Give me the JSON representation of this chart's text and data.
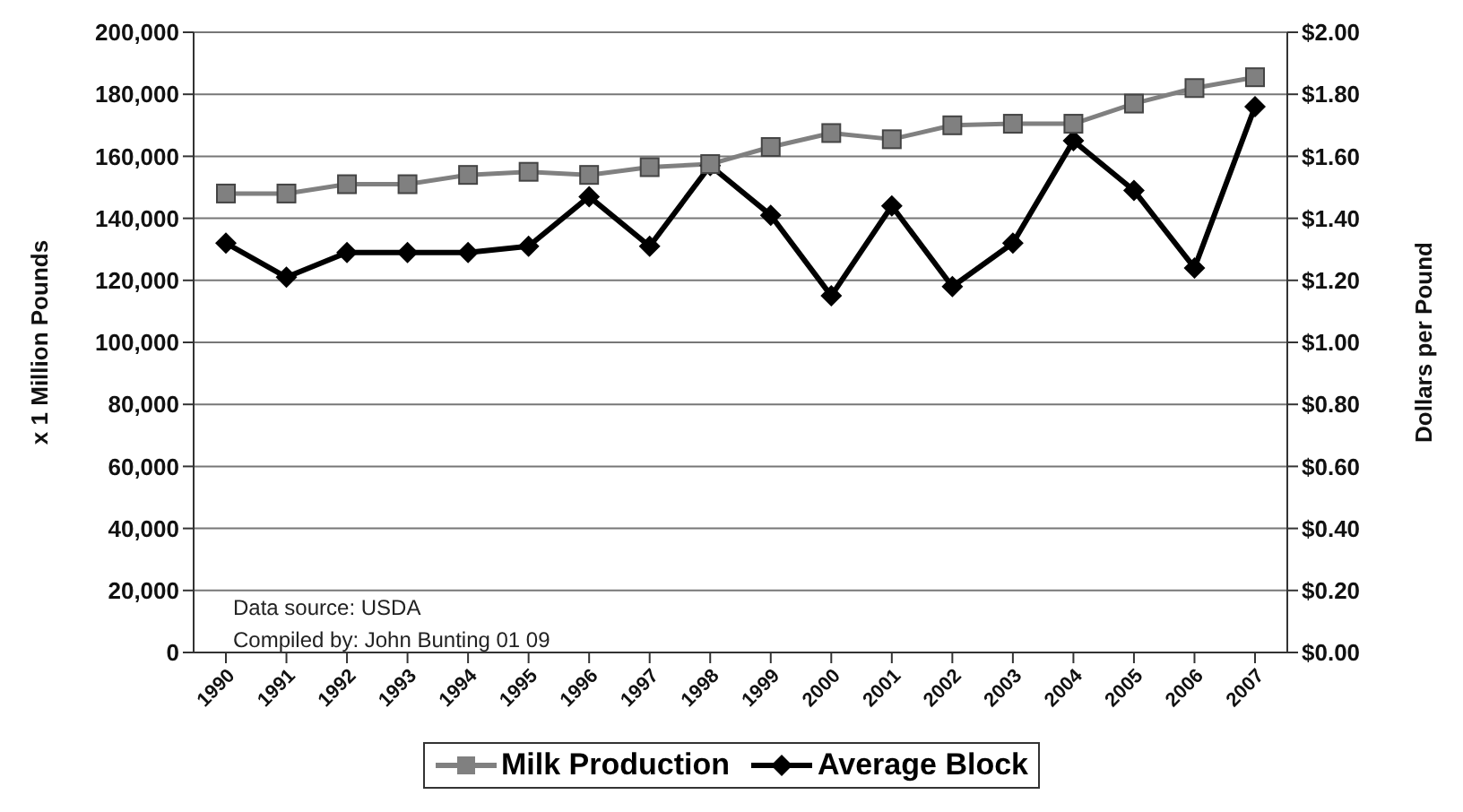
{
  "chart_data": {
    "type": "line",
    "categories": [
      "1990",
      "1991",
      "1992",
      "1993",
      "1994",
      "1995",
      "1996",
      "1997",
      "1998",
      "1999",
      "2000",
      "2001",
      "2002",
      "2003",
      "2004",
      "2005",
      "2006",
      "2007"
    ],
    "ylabel": "x 1 Million Pounds",
    "y2label": "Dollars per Pound",
    "series": [
      {
        "name": "Milk Production",
        "color": "#808080",
        "marker": "square",
        "values": [
          148000,
          148000,
          151000,
          151000,
          154000,
          155000,
          154000,
          156500,
          157500,
          163000,
          167500,
          165500,
          170000,
          170500,
          170500,
          177000,
          182000,
          185500
        ]
      },
      {
        "name": "Average Block",
        "color": "#000000",
        "marker": "diamond",
        "axis": "y2",
        "values": [
          1.32,
          1.21,
          1.29,
          1.29,
          1.29,
          1.31,
          1.47,
          1.31,
          1.57,
          1.41,
          1.15,
          1.44,
          1.18,
          1.32,
          1.65,
          1.49,
          1.24,
          1.76
        ]
      }
    ],
    "ylim": [
      0,
      200000
    ],
    "yticks": [
      {
        "value": 0,
        "label": "0"
      },
      {
        "value": 20000,
        "label": "20,000"
      },
      {
        "value": 40000,
        "label": "40,000"
      },
      {
        "value": 60000,
        "label": "60,000"
      },
      {
        "value": 80000,
        "label": "80,000"
      },
      {
        "value": 100000,
        "label": "100,000"
      },
      {
        "value": 120000,
        "label": "120,000"
      },
      {
        "value": 140000,
        "label": "140,000"
      },
      {
        "value": 160000,
        "label": "160,000"
      },
      {
        "value": 180000,
        "label": "180,000"
      },
      {
        "value": 200000,
        "label": "200,000"
      }
    ],
    "y2lim": [
      0,
      2
    ],
    "y2ticks": [
      {
        "value": 0,
        "label": "$0.00"
      },
      {
        "value": 0.2,
        "label": "$0.20"
      },
      {
        "value": 0.4,
        "label": "$0.40"
      },
      {
        "value": 0.6,
        "label": "$0.60"
      },
      {
        "value": 0.8,
        "label": "$0.80"
      },
      {
        "value": 1,
        "label": "$1.00"
      },
      {
        "value": 1.2,
        "label": "$1.20"
      },
      {
        "value": 1.4,
        "label": "$1.40"
      },
      {
        "value": 1.6,
        "label": "$1.60"
      },
      {
        "value": 1.8,
        "label": "$1.80"
      },
      {
        "value": 2,
        "label": "$2.00"
      }
    ],
    "grid": "y",
    "legend": "bottom",
    "annotations": [
      "Data source: USDA",
      "Compiled by: John Bunting 01 09"
    ]
  }
}
